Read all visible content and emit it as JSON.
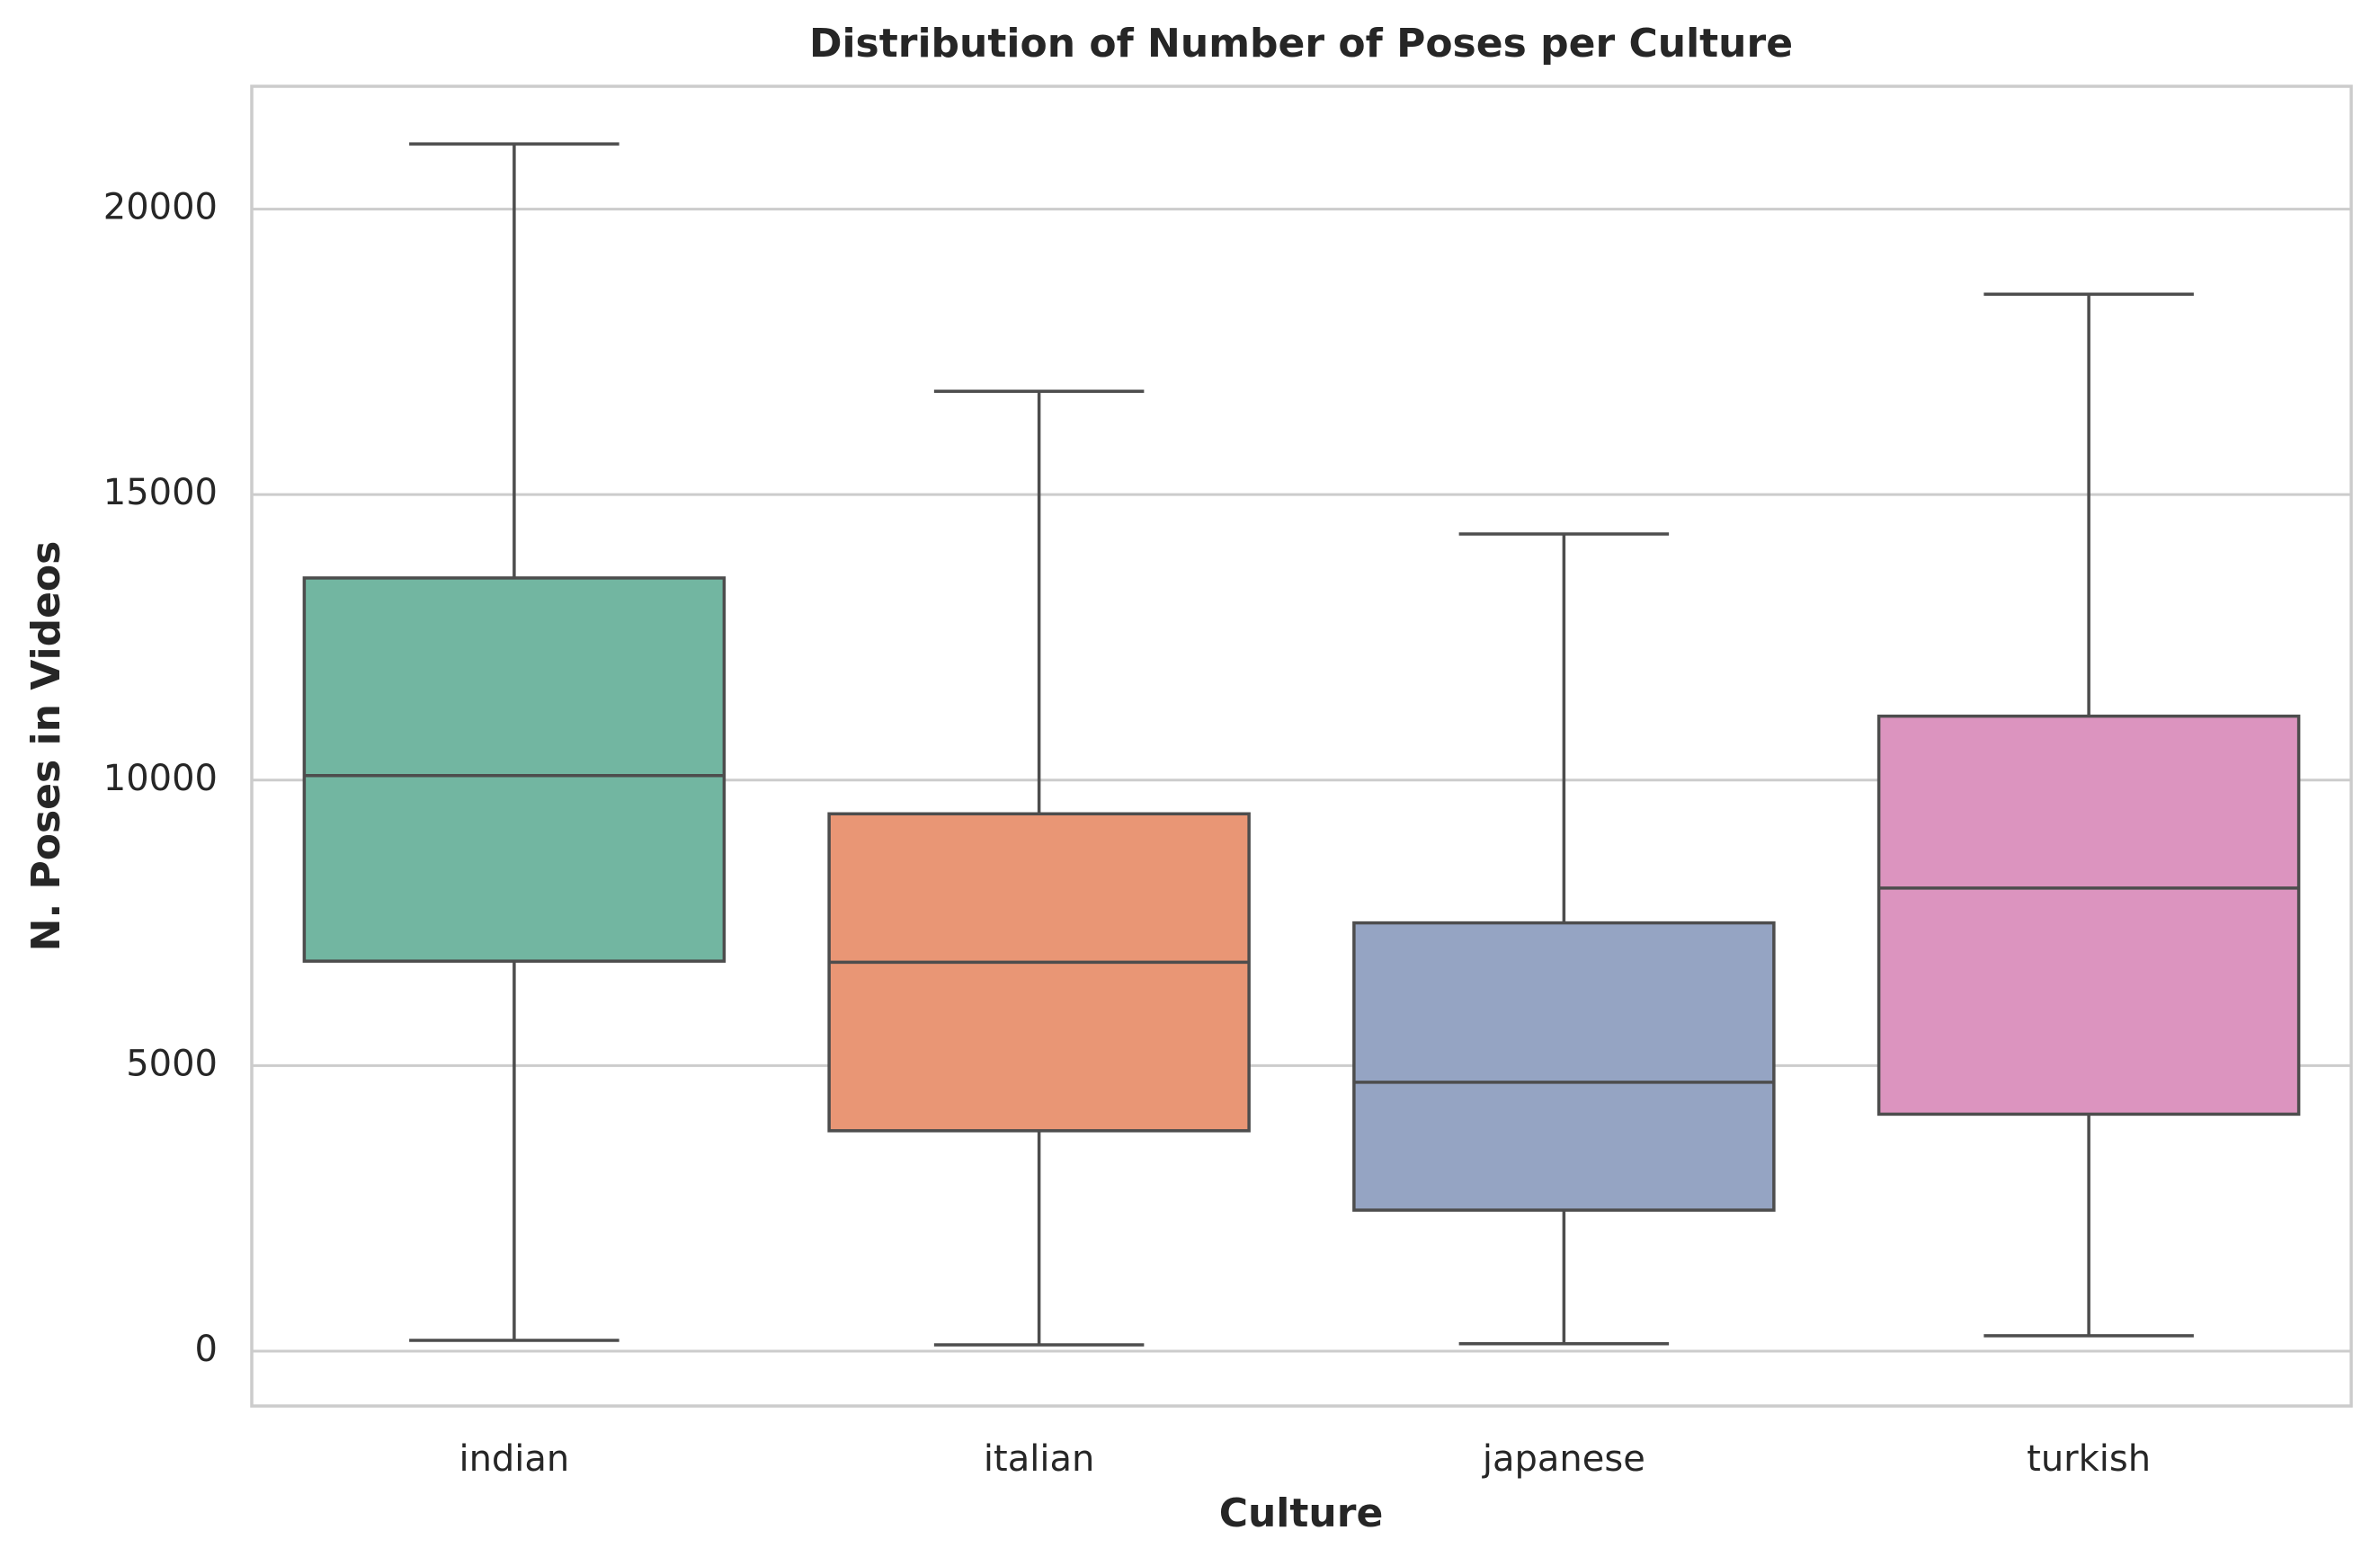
{
  "chart_data": {
    "type": "box",
    "title": "Distribution of Number of Poses per Culture",
    "x_label": "Culture",
    "y_label": "N. Poses in Videos",
    "categories": [
      "indian",
      "italian",
      "japanese",
      "turkish"
    ],
    "boxes": [
      {
        "color": "#72b6a1",
        "whislo": 190,
        "q1": 6830,
        "med": 10080,
        "q3": 13540,
        "whishi": 21140
      },
      {
        "color": "#e99675",
        "whislo": 110,
        "q1": 3860,
        "med": 6810,
        "q3": 9410,
        "whishi": 16810
      },
      {
        "color": "#95a4c3",
        "whislo": 130,
        "q1": 2470,
        "med": 4710,
        "q3": 7500,
        "whishi": 14310
      },
      {
        "color": "#dc94bf",
        "whislo": 270,
        "q1": 4150,
        "med": 8110,
        "q3": 11120,
        "whishi": 18510
      }
    ],
    "ylim": [
      -960,
      22150
    ],
    "yticks": [
      0,
      5000,
      10000,
      15000,
      20000
    ],
    "grid": true
  }
}
